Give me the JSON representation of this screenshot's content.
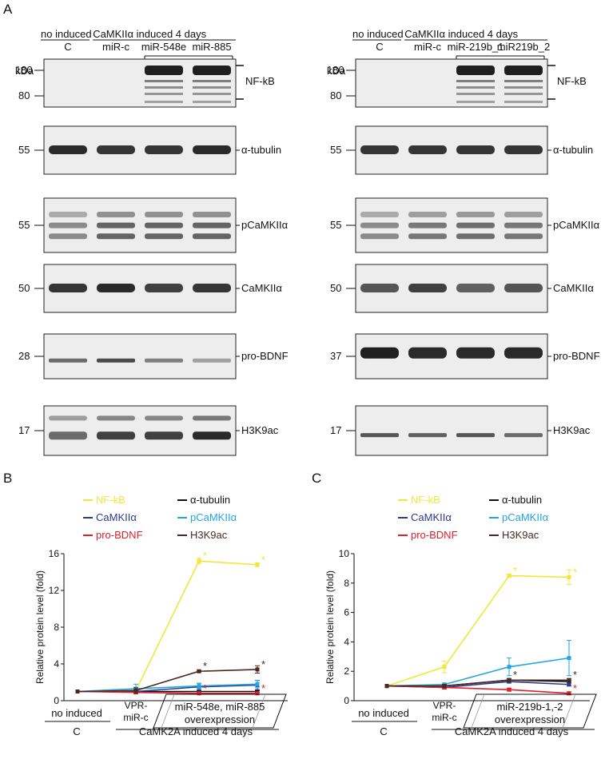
{
  "panel_labels": {
    "a": "A",
    "b": "B",
    "c": "C"
  },
  "western_blot": {
    "left": {
      "header_no_induced": "no induced",
      "header_induced": "CaMKIIα induced 4 days",
      "lanes": [
        "C",
        "miR-c",
        "miR-548e",
        "miR-885"
      ],
      "kda_label": "kDa",
      "rows": [
        {
          "protein": "NF-kB",
          "markers": [
            "180",
            "80"
          ]
        },
        {
          "protein": "α-tubulin",
          "markers": [
            "55"
          ]
        },
        {
          "protein": "pCaMKIIα",
          "markers": [
            "55"
          ]
        },
        {
          "protein": "CaMKIIα",
          "markers": [
            "50"
          ]
        },
        {
          "protein": "pro-BDNF",
          "markers": [
            "28"
          ]
        },
        {
          "protein": "H3K9ac",
          "markers": [
            "17"
          ]
        }
      ]
    },
    "right": {
      "header_no_induced": "no induced",
      "header_induced": "CaMKIIα induced 4 days",
      "lanes": [
        "C",
        "miR-c",
        "miR-219b_1",
        "miR219b_2"
      ],
      "kda_label": "kDa",
      "rows": [
        {
          "protein": "NF-kB",
          "markers": [
            "180",
            "80"
          ]
        },
        {
          "protein": "α-tubulin",
          "markers": [
            "55"
          ]
        },
        {
          "protein": "pCaMKIIα",
          "markers": [
            "55"
          ]
        },
        {
          "protein": "CaMKIIα",
          "markers": [
            "50"
          ]
        },
        {
          "protein": "pro-BDNF",
          "markers": [
            "37"
          ]
        },
        {
          "protein": "H3K9ac",
          "markers": [
            "17"
          ]
        }
      ]
    }
  },
  "chart_data": [
    {
      "type": "line",
      "panel": "B",
      "ylabel": "Relative protein level (fold)",
      "ylim": [
        0,
        16
      ],
      "yticks": [
        0,
        4,
        8,
        12,
        16
      ],
      "x_groups": {
        "control_label": "no induced",
        "control_sub": "C",
        "vpr_label": [
          "VPR-",
          "miR-c"
        ],
        "mir_label": [
          "miR-548e, miR-885",
          "overexpression"
        ],
        "bottom_label": "CaMK2A induced 4 days"
      },
      "legend": [
        {
          "name": "NF-kB",
          "color": "#f2e63a"
        },
        {
          "name": "α-tubulin",
          "color": "#111111"
        },
        {
          "name": "CaMKIIα",
          "color": "#2b3a8c"
        },
        {
          "name": "pCaMKIIα",
          "color": "#22a6e0"
        },
        {
          "name": "pro-BDNF",
          "color": "#e0202a"
        },
        {
          "name": "H3K9ac",
          "color": "#4a2a20"
        }
      ],
      "series": [
        {
          "name": "NF-kB",
          "color": "#f2e63a",
          "values": [
            1,
            1.1,
            15.2,
            14.8
          ],
          "err": [
            0,
            0.2,
            0.3,
            0.2
          ],
          "sig": [
            false,
            false,
            true,
            true
          ]
        },
        {
          "name": "α-tubulin",
          "color": "#111111",
          "values": [
            1,
            1.0,
            1.0,
            1.0
          ],
          "err": [
            0,
            0.1,
            0.1,
            0.1
          ],
          "sig": [
            false,
            false,
            false,
            false
          ]
        },
        {
          "name": "CaMKIIα",
          "color": "#2b3a8c",
          "values": [
            1,
            1.0,
            1.5,
            1.7
          ],
          "err": [
            0,
            0.2,
            0.4,
            0.5
          ],
          "sig": [
            false,
            false,
            false,
            false
          ]
        },
        {
          "name": "pCaMKIIα",
          "color": "#22a6e0",
          "values": [
            1,
            1.3,
            1.6,
            1.8
          ],
          "err": [
            0,
            0.5,
            0.3,
            0.4
          ],
          "sig": [
            false,
            false,
            false,
            false
          ]
        },
        {
          "name": "pro-BDNF",
          "color": "#e0202a",
          "values": [
            1,
            0.9,
            0.8,
            0.8
          ],
          "err": [
            0,
            0.1,
            0.1,
            0.1
          ],
          "sig": [
            false,
            false,
            true,
            true
          ]
        },
        {
          "name": "H3K9ac",
          "color": "#4a2a20",
          "values": [
            1,
            1.1,
            3.2,
            3.4
          ],
          "err": [
            0,
            0.3,
            0.1,
            0.4
          ],
          "sig": [
            false,
            false,
            true,
            true
          ]
        }
      ]
    },
    {
      "type": "line",
      "panel": "C",
      "ylabel": "Relative protein level (fold)",
      "ylim": [
        0,
        10
      ],
      "yticks": [
        0,
        2,
        4,
        6,
        8,
        10
      ],
      "x_groups": {
        "control_label": "no induced",
        "control_sub": "C",
        "vpr_label": [
          "VPR-",
          "miR-c"
        ],
        "mir_label": [
          "miR-219b-1,-2",
          "overexpression"
        ],
        "bottom_label": "CaMK2A induced 4 days"
      },
      "legend": [
        {
          "name": "NF-kB",
          "color": "#f2e63a"
        },
        {
          "name": "α-tubulin",
          "color": "#111111"
        },
        {
          "name": "CaMKIIα",
          "color": "#2b3a8c"
        },
        {
          "name": "pCaMKIIα",
          "color": "#22a6e0"
        },
        {
          "name": "pro-BDNF",
          "color": "#e0202a"
        },
        {
          "name": "H3K9ac",
          "color": "#4a2a20"
        }
      ],
      "series": [
        {
          "name": "NF-kB",
          "color": "#f2e63a",
          "values": [
            1,
            2.3,
            8.5,
            8.4
          ],
          "err": [
            0,
            0.4,
            0.1,
            0.5
          ],
          "sig": [
            false,
            false,
            true,
            true
          ]
        },
        {
          "name": "α-tubulin",
          "color": "#111111",
          "values": [
            1,
            1.0,
            1.4,
            1.3
          ],
          "err": [
            0,
            0.1,
            0.1,
            0.1
          ],
          "sig": [
            false,
            false,
            false,
            false
          ]
        },
        {
          "name": "CaMKIIα",
          "color": "#2b3a8c",
          "values": [
            1,
            0.9,
            1.3,
            1.1
          ],
          "err": [
            0,
            0.1,
            0.1,
            0.1
          ],
          "sig": [
            false,
            false,
            false,
            false
          ]
        },
        {
          "name": "pCaMKIIα",
          "color": "#22a6e0",
          "values": [
            1,
            1.1,
            2.3,
            2.9
          ],
          "err": [
            0,
            0.1,
            0.6,
            1.2
          ],
          "sig": [
            false,
            false,
            false,
            false
          ]
        },
        {
          "name": "pro-BDNF",
          "color": "#e0202a",
          "values": [
            1,
            0.9,
            0.75,
            0.5
          ],
          "err": [
            0,
            0.1,
            0.1,
            0.1
          ],
          "sig": [
            false,
            false,
            false,
            true
          ]
        },
        {
          "name": "H3K9ac",
          "color": "#4a2a20",
          "values": [
            1,
            1.0,
            1.4,
            1.4
          ],
          "err": [
            0,
            0.1,
            0.1,
            0.1
          ],
          "sig": [
            false,
            false,
            true,
            true
          ]
        }
      ]
    }
  ]
}
